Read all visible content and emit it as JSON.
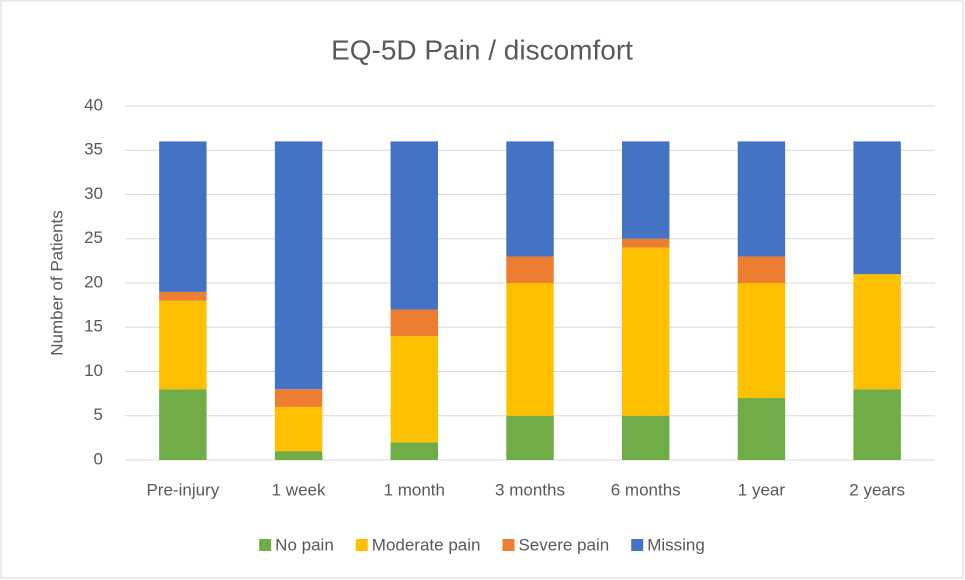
{
  "chart_data": {
    "type": "stacked_bar",
    "title": "EQ-5D Pain / discomfort",
    "y_label": "Number of Patients",
    "categories": [
      "Pre-injury",
      "1 week",
      "1 month",
      "3 months",
      "6 months",
      "1 year",
      "2 years"
    ],
    "series": [
      {
        "name": "No pain",
        "color": "#70ad47",
        "values": [
          8,
          1,
          2,
          5,
          5,
          7,
          8
        ]
      },
      {
        "name": "Moderate pain",
        "color": "#ffc000",
        "values": [
          10,
          5,
          12,
          15,
          19,
          13,
          13
        ]
      },
      {
        "name": "Severe pain",
        "color": "#ed7d31",
        "values": [
          1,
          2,
          3,
          3,
          1,
          3,
          0
        ]
      },
      {
        "name": "Missing",
        "color": "#4472c4",
        "values": [
          17,
          28,
          19,
          13,
          11,
          13,
          15
        ]
      }
    ],
    "ylim": [
      0,
      40
    ],
    "yticks": [
      0,
      5,
      10,
      15,
      20,
      25,
      30,
      35,
      40
    ],
    "grid": true,
    "legend": "bottom"
  }
}
